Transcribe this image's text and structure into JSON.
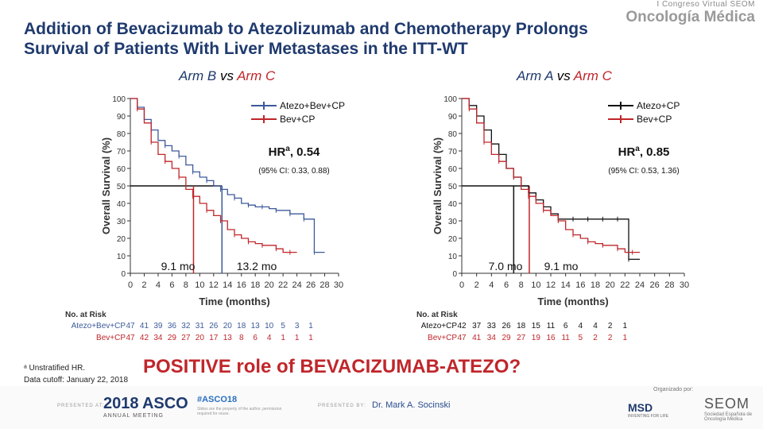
{
  "slide": {
    "title_line1": "Addition of Bevacizumab to Atezolizumab and Chemotherapy Prolongs",
    "title_line2": "Survival of Patients With Liver Metastases in the ITT-WT",
    "subtitle_left": {
      "arm1": "Arm B",
      "vs": " vs ",
      "arm2": "Arm C"
    },
    "subtitle_right": {
      "arm1": "Arm A",
      "vs": " vs ",
      "arm2": "Arm C"
    },
    "footnote_line1": "ᵃ Unstratified HR.",
    "footnote_line2": "Data cutoff: January 22, 2018",
    "conclusion": "POSITIVE role of BEVACIZUMAB-ATEZO?",
    "logo_top_line1": "I Congreso Virtual SEOM",
    "logo_top_line2": "Oncología Médica",
    "footer": {
      "presented_at": "PRESENTED AT:",
      "asco_year": "2018",
      "asco_name": "ASCO",
      "asco_sub": "ANNUAL MEETING",
      "hashtag": "#ASCO18",
      "hashnote": "Slides are the property of the author, permission required for reuse.",
      "presented_by": "PRESENTED BY:",
      "presenter": "Dr. Mark A. Socinski",
      "organized": "Organizado por:",
      "msd": "MSD",
      "msd_sub": "INVENTING FOR LIFE",
      "seom": "SEOM",
      "seom_sub": "Sociedad Española de Oncología Médica"
    }
  },
  "colors": {
    "red": "#c0262b",
    "blue": "#3c5a99",
    "black": "#111111",
    "title": "#1f3a6e"
  },
  "chart_data": [
    {
      "type": "line",
      "ylabel": "Overall Survival (%)",
      "xlabel": "Time (months)",
      "xlim": [
        0,
        30
      ],
      "ylim": [
        0,
        100
      ],
      "x_ticks": [
        0,
        2,
        4,
        6,
        8,
        10,
        12,
        14,
        16,
        18,
        20,
        22,
        24,
        26,
        28,
        30
      ],
      "y_ticks": [
        0,
        10,
        20,
        30,
        40,
        50,
        60,
        70,
        80,
        90,
        100
      ],
      "legend_position": "top-right",
      "series": [
        {
          "name": "Atezo+Bev+CP",
          "color": "#3c5a99",
          "x": [
            0,
            1,
            2,
            3,
            4,
            5,
            6,
            7,
            8,
            9,
            10,
            11,
            12,
            13,
            14,
            15,
            16,
            17,
            18,
            19,
            20,
            21,
            22,
            23,
            24,
            25,
            26,
            26.5,
            28
          ],
          "y": [
            100,
            95,
            88,
            82,
            76,
            73,
            70,
            67,
            62,
            58,
            55,
            53,
            50,
            48,
            45,
            43,
            40,
            39,
            38,
            38,
            37,
            36,
            36,
            34,
            34,
            31,
            31,
            12,
            12
          ]
        },
        {
          "name": "Bev+CP",
          "color": "#c0262b",
          "x": [
            0,
            1,
            2,
            3,
            4,
            5,
            6,
            7,
            8,
            9,
            10,
            11,
            12,
            13,
            14,
            15,
            16,
            17,
            18,
            19,
            20,
            21,
            22,
            23,
            24
          ],
          "y": [
            100,
            94,
            86,
            75,
            68,
            64,
            60,
            55,
            48,
            44,
            40,
            36,
            33,
            30,
            25,
            22,
            20,
            18,
            17,
            16,
            16,
            14,
            12,
            12,
            12
          ]
        }
      ],
      "medians": [
        {
          "label": "9.1 mo",
          "x": 9.1,
          "color": "#c0262b"
        },
        {
          "label": "13.2 mo",
          "x": 13.2,
          "color": "#3c5a99"
        }
      ],
      "annotation": {
        "hr_label": "HR",
        "hr_sup": "a",
        "hr_value": ", 0.54",
        "ci": "(95% CI: 0.33, 0.88)"
      },
      "risk": {
        "title": "No. at Risk",
        "rows": [
          {
            "name": "Atezo+Bev+CP",
            "color": "#3c5a99",
            "values": [
              "47",
              "41",
              "39",
              "36",
              "32",
              "31",
              "26",
              "20",
              "18",
              "13",
              "10",
              "5",
              "3",
              "1"
            ]
          },
          {
            "name": "Bev+CP",
            "color": "#c0262b",
            "values": [
              "47",
              "42",
              "34",
              "29",
              "27",
              "20",
              "17",
              "13",
              "8",
              "6",
              "4",
              "1",
              "1",
              "1"
            ]
          }
        ]
      }
    },
    {
      "type": "line",
      "ylabel": "Overall Survival (%)",
      "xlabel": "Time (months)",
      "xlim": [
        0,
        30
      ],
      "ylim": [
        0,
        100
      ],
      "x_ticks": [
        0,
        2,
        4,
        6,
        8,
        10,
        12,
        14,
        16,
        18,
        20,
        22,
        24,
        26,
        28,
        30
      ],
      "y_ticks": [
        0,
        10,
        20,
        30,
        40,
        50,
        60,
        70,
        80,
        90,
        100
      ],
      "legend_position": "top-right",
      "series": [
        {
          "name": "Atezo+CP",
          "color": "#111111",
          "x": [
            0,
            1,
            2,
            3,
            4,
            5,
            6,
            7,
            8,
            9,
            10,
            11,
            12,
            13,
            14,
            15,
            16,
            17,
            18,
            19,
            20,
            21,
            22,
            22.5,
            24
          ],
          "y": [
            100,
            96,
            90,
            82,
            74,
            68,
            60,
            55,
            50,
            46,
            42,
            38,
            34,
            31,
            31,
            31,
            31,
            31,
            31,
            31,
            31,
            31,
            31,
            8,
            8
          ]
        },
        {
          "name": "Bev+CP",
          "color": "#c0262b",
          "x": [
            0,
            1,
            2,
            3,
            4,
            5,
            6,
            7,
            8,
            9,
            10,
            11,
            12,
            13,
            14,
            15,
            16,
            17,
            18,
            19,
            20,
            21,
            22,
            23,
            24
          ],
          "y": [
            100,
            94,
            86,
            75,
            68,
            64,
            60,
            55,
            48,
            44,
            40,
            36,
            33,
            30,
            25,
            22,
            20,
            18,
            17,
            16,
            16,
            14,
            12,
            12,
            12
          ]
        }
      ],
      "medians": [
        {
          "label": "7.0 mo",
          "x": 7.0,
          "color": "#111111"
        },
        {
          "label": "9.1 mo",
          "x": 9.1,
          "color": "#c0262b"
        }
      ],
      "annotation": {
        "hr_label": "HR",
        "hr_sup": "a",
        "hr_value": ", 0.85",
        "ci": "(95% CI: 0.53, 1.36)"
      },
      "risk": {
        "title": "No. at Risk",
        "rows": [
          {
            "name": "Atezo+CP",
            "color": "#111111",
            "values": [
              "42",
              "37",
              "33",
              "26",
              "18",
              "15",
              "11",
              "6",
              "4",
              "4",
              "2",
              "1"
            ]
          },
          {
            "name": "Bev+CP",
            "color": "#c0262b",
            "values": [
              "47",
              "41",
              "34",
              "29",
              "27",
              "19",
              "16",
              "11",
              "5",
              "2",
              "2",
              "1"
            ]
          }
        ]
      }
    }
  ]
}
